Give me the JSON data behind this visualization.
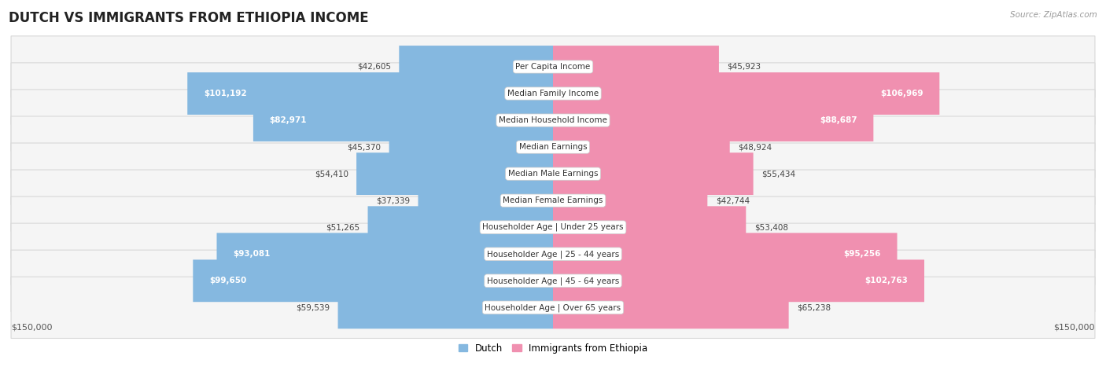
{
  "title": "DUTCH VS IMMIGRANTS FROM ETHIOPIA INCOME",
  "source": "Source: ZipAtlas.com",
  "categories": [
    "Per Capita Income",
    "Median Family Income",
    "Median Household Income",
    "Median Earnings",
    "Median Male Earnings",
    "Median Female Earnings",
    "Householder Age | Under 25 years",
    "Householder Age | 25 - 44 years",
    "Householder Age | 45 - 64 years",
    "Householder Age | Over 65 years"
  ],
  "dutch_values": [
    42605,
    101192,
    82971,
    45370,
    54410,
    37339,
    51265,
    93081,
    99650,
    59539
  ],
  "ethiopia_values": [
    45923,
    106969,
    88687,
    48924,
    55434,
    42744,
    53408,
    95256,
    102763,
    65238
  ],
  "dutch_labels": [
    "$42,605",
    "$101,192",
    "$82,971",
    "$45,370",
    "$54,410",
    "$37,339",
    "$51,265",
    "$93,081",
    "$99,650",
    "$59,539"
  ],
  "ethiopia_labels": [
    "$45,923",
    "$106,969",
    "$88,687",
    "$48,924",
    "$55,434",
    "$42,744",
    "$53,408",
    "$95,256",
    "$102,763",
    "$65,238"
  ],
  "dutch_color": "#85b8e0",
  "ethiopia_color": "#f090b0",
  "label_inside_color": "#ffffff",
  "label_outside_color": "#444444",
  "max_value": 150000,
  "background_color": "#ffffff",
  "row_bg_color": "#f5f5f5",
  "row_border_color": "#d8d8d8",
  "legend_dutch": "Dutch",
  "legend_ethiopia": "Immigrants from Ethiopia",
  "xlabel_left": "$150,000",
  "xlabel_right": "$150,000",
  "title_fontsize": 12,
  "label_fontsize": 7.5,
  "category_fontsize": 7.5,
  "inside_threshold_ratio": 0.45
}
